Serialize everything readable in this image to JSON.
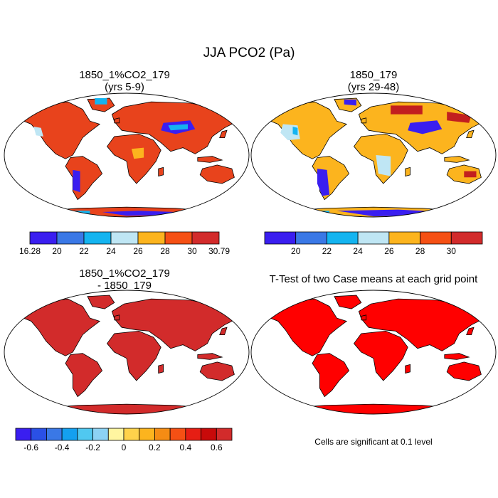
{
  "figure": {
    "title": "JJA PCO2 (Pa)"
  },
  "panels": [
    {
      "id": "case",
      "title_line1": "1850_1%CO2_179",
      "title_line2": "(yrs 5-9)"
    },
    {
      "id": "control",
      "title_line1": "1850_179",
      "title_line2": "(yrs 29-48)"
    },
    {
      "id": "diff",
      "title_line1": "1850_1%CO2_179",
      "title_line2": "- 1850_179"
    },
    {
      "id": "ttest",
      "title_line1": "T-Test of two Case means at each grid point",
      "title_line2": ""
    }
  ],
  "colorbars": {
    "case": {
      "colors": [
        "#3a1ef0",
        "#3a78e6",
        "#14b4f0",
        "#bfe6f4",
        "#fcb41e",
        "#f55014",
        "#d22b2b"
      ],
      "labels": [
        "16.28",
        "20",
        "22",
        "24",
        "26",
        "28",
        "30",
        "30.79"
      ]
    },
    "control": {
      "colors": [
        "#3a1ef0",
        "#3a78e6",
        "#14b4f0",
        "#bfe6f4",
        "#fcb41e",
        "#f55014",
        "#d22b2b"
      ],
      "labels": [
        "20",
        "22",
        "24",
        "26",
        "28",
        "30"
      ]
    },
    "diff": {
      "colors": [
        "#3a1ef0",
        "#2a50e6",
        "#3a78e6",
        "#14a0f0",
        "#50c8f0",
        "#8cd2f4",
        "#fff5a0",
        "#ffd24b",
        "#fcb41e",
        "#f58c14",
        "#f55014",
        "#e61e14",
        "#c80a0a",
        "#d22b2b"
      ],
      "labels": [
        "-0.6",
        "-0.4",
        "-0.2",
        "0",
        "0.2",
        "0.4",
        "0.6"
      ]
    }
  },
  "ttest_note": "Cells are significant at 0.1 level",
  "map_colors": {
    "case_land": "#e8431c",
    "control_land": "#fcb41e",
    "diff_land": "#d22b2b",
    "ttest_land": "#ff0000",
    "low": "#3a1ef0",
    "mid": "#14b4f0",
    "pale": "#bfe6f4",
    "orange": "#fcb41e",
    "dark": "#c21f1f"
  }
}
